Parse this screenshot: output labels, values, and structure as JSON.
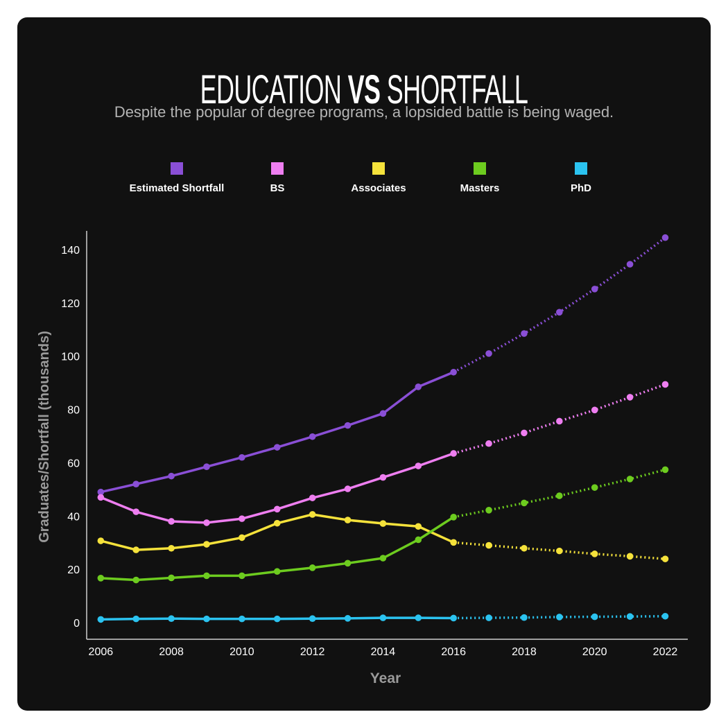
{
  "title": {
    "part1": "EDUCATION",
    "part2": "VS",
    "part3": "SHORTFALL"
  },
  "subtitle": "Despite the popular of degree programs, a lopsided battle is being waged.",
  "chart_data": {
    "type": "line",
    "x": [
      2006,
      2007,
      2008,
      2009,
      2010,
      2011,
      2012,
      2013,
      2014,
      2015,
      2016,
      2017,
      2018,
      2019,
      2020,
      2021,
      2022
    ],
    "projection_start": 2016,
    "xlabel": "Year",
    "ylabel": "Graduates/Shortfall (thousands)",
    "ylim": [
      0,
      150
    ],
    "xlim": [
      2005.6,
      2022.6
    ],
    "x_ticks": [
      "2006",
      "2008",
      "2010",
      "2012",
      "2014",
      "2016",
      "2018",
      "2020",
      "2022"
    ],
    "y_ticks": [
      "0",
      "20",
      "40",
      "60",
      "80",
      "100",
      "120",
      "140"
    ],
    "legend_position": "top",
    "series": [
      {
        "name": "Estimated Shortfall",
        "color": "#8a4fd6",
        "values": [
          49,
          52,
          55,
          58.5,
          62,
          65.8,
          69.8,
          74,
          78.5,
          88.5,
          94,
          101,
          108.5,
          116.5,
          125.2,
          134.5,
          144.5
        ]
      },
      {
        "name": "BS",
        "color": "#ee7ef0",
        "values": [
          47,
          41.6,
          38,
          37.5,
          39,
          42.6,
          46.8,
          50.2,
          54.5,
          58.8,
          63.5,
          67.2,
          71.2,
          75.6,
          79.8,
          84.6,
          89.4
        ]
      },
      {
        "name": "Associates",
        "color": "#f5e23b",
        "values": [
          30.7,
          27.3,
          27.9,
          29.4,
          31.9,
          37.3,
          40.6,
          38.5,
          37.2,
          36.1,
          30.1,
          29,
          27.9,
          26.9,
          25.8,
          24.9,
          23.9
        ]
      },
      {
        "name": "Masters",
        "color": "#6dcc1f",
        "values": [
          16.7,
          16,
          16.8,
          17.6,
          17.6,
          19.2,
          20.6,
          22.3,
          24.2,
          31.1,
          39.6,
          42.2,
          44.9,
          47.6,
          50.7,
          53.9,
          57.4
        ]
      },
      {
        "name": "PhD",
        "color": "#2bc3f0",
        "values": [
          1.2,
          1.4,
          1.5,
          1.4,
          1.4,
          1.4,
          1.5,
          1.6,
          1.8,
          1.8,
          1.7,
          1.8,
          1.9,
          2.1,
          2.2,
          2.3,
          2.4
        ]
      }
    ]
  }
}
